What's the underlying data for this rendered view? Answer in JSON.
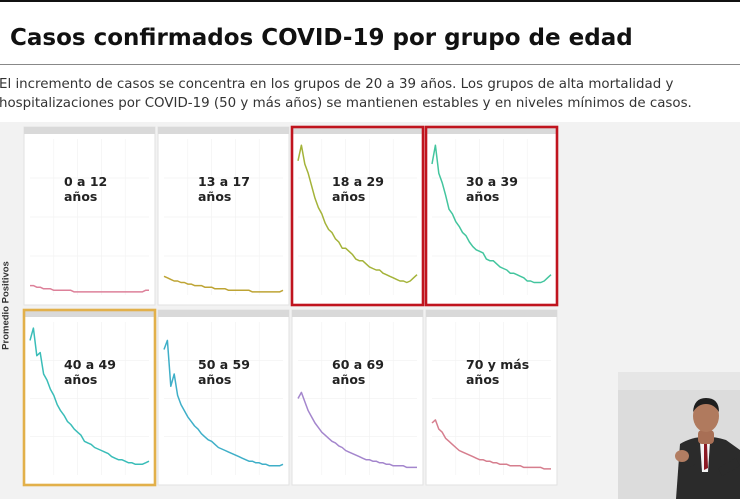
{
  "header": {
    "title": "Casos confirmados COVID-19 por grupo de edad",
    "subtitle_line1": "El incremento de casos se concentra en los grupos de 20 a 39 años. Los grupos de alta mortalidad y",
    "subtitle_line2": "hospitalizaciones por COVID-19 (50 y más años) se mantienen estables y en niveles mínimos de casos."
  },
  "colors": {
    "highlight_red": "#c0141e",
    "highlight_yellow": "#e2b04a"
  },
  "chart_data": {
    "type": "line",
    "ylabel": "Promedio Positivos",
    "xlabel": "",
    "ylim": [
      0,
      100
    ],
    "grid": true,
    "facets": [
      {
        "label": "0 a 12\naños",
        "color": "#d9738f",
        "highlight": null,
        "values": [
          6,
          6,
          5,
          5,
          4,
          4,
          4,
          3,
          3,
          3,
          3,
          3,
          3,
          2,
          2,
          2,
          2,
          2,
          2,
          2,
          2,
          2,
          2,
          2,
          2,
          2,
          2,
          2,
          2,
          2,
          2,
          2,
          2,
          2,
          3,
          3
        ]
      },
      {
        "label": "13 a 17\naños",
        "color": "#b79a1e",
        "highlight": null,
        "values": [
          12,
          11,
          10,
          9,
          9,
          8,
          8,
          7,
          7,
          6,
          6,
          6,
          5,
          5,
          5,
          4,
          4,
          4,
          4,
          3,
          3,
          3,
          3,
          3,
          3,
          3,
          2,
          2,
          2,
          2,
          2,
          2,
          2,
          2,
          2,
          3
        ]
      },
      {
        "label": "18 a 29\naños",
        "color": "#9aab24",
        "highlight": "red",
        "values": [
          86,
          96,
          84,
          78,
          70,
          62,
          56,
          52,
          46,
          42,
          40,
          36,
          34,
          30,
          30,
          28,
          26,
          23,
          22,
          22,
          20,
          18,
          17,
          16,
          16,
          14,
          13,
          12,
          11,
          10,
          9,
          9,
          8,
          9,
          11,
          13
        ]
      },
      {
        "label": "30 a 39\naños",
        "color": "#2fbf94",
        "highlight": "red",
        "values": [
          84,
          96,
          78,
          72,
          64,
          55,
          52,
          47,
          44,
          40,
          38,
          34,
          31,
          29,
          28,
          27,
          23,
          22,
          22,
          20,
          18,
          17,
          16,
          14,
          14,
          13,
          12,
          11,
          9,
          9,
          8,
          8,
          8,
          9,
          11,
          13
        ]
      },
      {
        "label": "40 a 49\naños",
        "color": "#25b6b0",
        "highlight": "yellow",
        "values": [
          88,
          96,
          78,
          80,
          66,
          62,
          56,
          52,
          46,
          42,
          39,
          35,
          33,
          30,
          28,
          26,
          22,
          21,
          20,
          18,
          17,
          16,
          15,
          14,
          12,
          11,
          10,
          10,
          9,
          8,
          8,
          7,
          7,
          7,
          8,
          9
        ]
      },
      {
        "label": "50 a 59\naños",
        "color": "#2aa6c2",
        "highlight": null,
        "values": [
          82,
          88,
          58,
          66,
          52,
          46,
          42,
          38,
          35,
          32,
          30,
          27,
          25,
          23,
          22,
          20,
          18,
          17,
          16,
          15,
          14,
          13,
          12,
          11,
          10,
          9,
          9,
          8,
          8,
          7,
          7,
          6,
          6,
          6,
          6,
          7
        ]
      },
      {
        "label": "60 a 69\naños",
        "color": "#9a79c8",
        "highlight": null,
        "values": [
          50,
          54,
          48,
          42,
          38,
          34,
          31,
          28,
          26,
          24,
          22,
          21,
          19,
          18,
          16,
          15,
          14,
          13,
          12,
          11,
          10,
          10,
          9,
          9,
          8,
          8,
          7,
          7,
          6,
          6,
          6,
          6,
          5,
          5,
          5,
          5
        ]
      },
      {
        "label": "70 y más\naños",
        "color": "#d27082",
        "highlight": null,
        "values": [
          34,
          36,
          30,
          28,
          24,
          22,
          20,
          18,
          16,
          15,
          14,
          13,
          12,
          11,
          10,
          10,
          9,
          9,
          8,
          8,
          7,
          7,
          7,
          6,
          6,
          6,
          6,
          5,
          5,
          5,
          5,
          5,
          5,
          4,
          4,
          4
        ]
      }
    ]
  }
}
